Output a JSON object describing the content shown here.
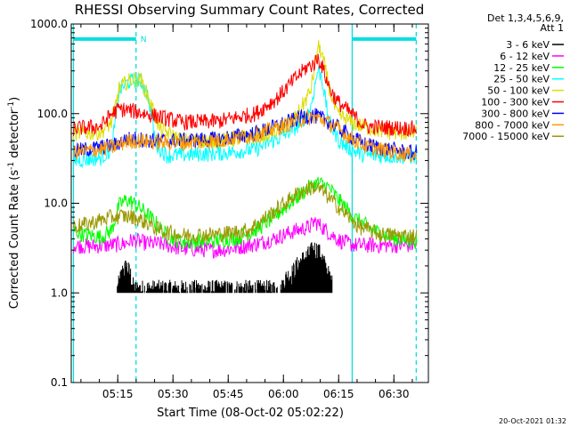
{
  "chart_data": {
    "type": "line",
    "title": "RHESSI Observing Summary Count Rates, Corrected",
    "xlabel": "Start Time (08-Oct-02 05:02:22)",
    "ylabel_parts": [
      "Corrected Count Rate (s",
      "-1",
      " detector",
      "-1",
      ")"
    ],
    "ylog": true,
    "ylim": [
      0.1,
      1000.0
    ],
    "xlim_min_from_start": [
      0,
      97
    ],
    "x_ticks": [
      {
        "label": "05:15",
        "min": 12.63
      },
      {
        "label": "05:30",
        "min": 27.63
      },
      {
        "label": "05:45",
        "min": 42.63
      },
      {
        "label": "06:00",
        "min": 57.63
      },
      {
        "label": "06:15",
        "min": 72.63
      },
      {
        "label": "06:30",
        "min": 87.63
      }
    ],
    "y_ticks": [
      {
        "label": "1000.0",
        "value": 1000
      },
      {
        "label": "100.0",
        "value": 100
      },
      {
        "label": "10.0",
        "value": 10
      },
      {
        "label": "1.0",
        "value": 1
      },
      {
        "label": "0.1",
        "value": 0.1
      }
    ],
    "legend_header": [
      "Det 1,3,4,5,6,9,",
      "Att 1"
    ],
    "legend_placement": "right",
    "vertical_lines": [
      {
        "min": 0.6,
        "style": "solid",
        "color": "#00e0e0"
      },
      {
        "min": 17.6,
        "style": "dashed",
        "color": "#00e0e0"
      },
      {
        "min": 76.3,
        "style": "solid",
        "color": "#00e0e0"
      },
      {
        "min": 93.7,
        "style": "dashed",
        "color": "#00e0e0"
      }
    ],
    "bars": [
      {
        "from": 0.6,
        "to": 17.6,
        "value": 680,
        "label": "N",
        "color": "#00e0e0"
      },
      {
        "from": 76.3,
        "to": 93.7,
        "value": 680,
        "label": "",
        "color": "#00e0e0"
      }
    ],
    "annotation": "20-Oct-2021 01:32",
    "series": [
      {
        "name": "3 - 6 keV",
        "color": "#000000",
        "style": "spiky",
        "points": [
          [
            12.5,
            1.0
          ],
          [
            14,
            1.6
          ],
          [
            15,
            1.8
          ],
          [
            16,
            1.5
          ],
          [
            17,
            1.0
          ],
          [
            27,
            1.0
          ],
          [
            55,
            1.0
          ],
          [
            57,
            0.95
          ],
          [
            58,
            1.3
          ],
          [
            60,
            1.5
          ],
          [
            62,
            2.0
          ],
          [
            64,
            2.3
          ],
          [
            65,
            2.6
          ],
          [
            66,
            2.8
          ],
          [
            67,
            2.7
          ],
          [
            68,
            2.3
          ],
          [
            69,
            1.8
          ],
          [
            70,
            1.4
          ],
          [
            71,
            1.1
          ]
        ]
      },
      {
        "name": "6 - 12 keV",
        "color": "#ff00ff",
        "style": "noisy",
        "points": [
          [
            0.6,
            3.4
          ],
          [
            5,
            3.3
          ],
          [
            10,
            3.4
          ],
          [
            14,
            3.5
          ],
          [
            17,
            3.9
          ],
          [
            20,
            3.6
          ],
          [
            25,
            3.5
          ],
          [
            30,
            3.1
          ],
          [
            40,
            3.0
          ],
          [
            45,
            3.2
          ],
          [
            50,
            3.5
          ],
          [
            55,
            4.0
          ],
          [
            60,
            4.8
          ],
          [
            65,
            5.5
          ],
          [
            66,
            6.3
          ],
          [
            68,
            5.5
          ],
          [
            70,
            4.7
          ],
          [
            73,
            3.8
          ],
          [
            77,
            3.4
          ],
          [
            80,
            3.4
          ],
          [
            94,
            3.4
          ]
        ]
      },
      {
        "name": "12 - 25 keV",
        "color": "#00ff00",
        "style": "noisy",
        "points": [
          [
            0.6,
            5.0
          ],
          [
            3,
            4.5
          ],
          [
            8,
            4.2
          ],
          [
            11,
            5.0
          ],
          [
            13,
            9.5
          ],
          [
            15,
            11.0
          ],
          [
            17,
            10.0
          ],
          [
            20,
            8.0
          ],
          [
            23,
            6.0
          ],
          [
            26,
            4.3
          ],
          [
            30,
            3.7
          ],
          [
            38,
            3.8
          ],
          [
            45,
            4.1
          ],
          [
            50,
            5.0
          ],
          [
            55,
            7.0
          ],
          [
            60,
            10.5
          ],
          [
            64,
            14.5
          ],
          [
            67,
            17.0
          ],
          [
            70,
            15.0
          ],
          [
            73,
            10.5
          ],
          [
            77,
            6.8
          ],
          [
            82,
            5.0
          ],
          [
            88,
            4.0
          ],
          [
            94,
            3.8
          ]
        ]
      },
      {
        "name": "25 - 50 keV",
        "color": "#00ffff",
        "style": "noisy",
        "points": [
          [
            0.6,
            30
          ],
          [
            8,
            32
          ],
          [
            11,
            40
          ],
          [
            13,
            180
          ],
          [
            15,
            220
          ],
          [
            17,
            235
          ],
          [
            19,
            228
          ],
          [
            21,
            150
          ],
          [
            23,
            45
          ],
          [
            26,
            34
          ],
          [
            40,
            36
          ],
          [
            50,
            40
          ],
          [
            57,
            55
          ],
          [
            62,
            75
          ],
          [
            65,
            115
          ],
          [
            67,
            310
          ],
          [
            68,
            260
          ],
          [
            70,
            80
          ],
          [
            73,
            48
          ],
          [
            76,
            40
          ],
          [
            79,
            35
          ],
          [
            82,
            34
          ],
          [
            94,
            33
          ]
        ]
      },
      {
        "name": "50 - 100 keV",
        "color": "#dddd00",
        "style": "noisy",
        "points": [
          [
            0.6,
            60
          ],
          [
            8,
            62
          ],
          [
            11,
            80
          ],
          [
            13,
            190
          ],
          [
            15,
            225
          ],
          [
            17,
            245
          ],
          [
            19,
            235
          ],
          [
            21,
            150
          ],
          [
            24,
            68
          ],
          [
            30,
            50
          ],
          [
            40,
            50
          ],
          [
            50,
            55
          ],
          [
            56,
            65
          ],
          [
            61,
            90
          ],
          [
            65,
            180
          ],
          [
            67,
            560
          ],
          [
            68,
            480
          ],
          [
            70,
            200
          ],
          [
            72,
            100
          ],
          [
            76,
            80
          ],
          [
            80,
            70
          ],
          [
            86,
            62
          ],
          [
            94,
            60
          ]
        ]
      },
      {
        "name": "100 - 300 keV",
        "color": "#ff0000",
        "style": "noisy",
        "points": [
          [
            0.6,
            68
          ],
          [
            8,
            72
          ],
          [
            11,
            100
          ],
          [
            13,
            112
          ],
          [
            15,
            110
          ],
          [
            17,
            106
          ],
          [
            20,
            100
          ],
          [
            24,
            92
          ],
          [
            30,
            80
          ],
          [
            40,
            82
          ],
          [
            50,
            100
          ],
          [
            56,
            150
          ],
          [
            61,
            250
          ],
          [
            64,
            330
          ],
          [
            66,
            360
          ],
          [
            67,
            420
          ],
          [
            68,
            350
          ],
          [
            70,
            200
          ],
          [
            72,
            140
          ],
          [
            76,
            100
          ],
          [
            80,
            72
          ],
          [
            86,
            70
          ],
          [
            94,
            68
          ]
        ]
      },
      {
        "name": "300 - 800 keV",
        "color": "#0000ff",
        "style": "noisy",
        "points": [
          [
            0.6,
            38
          ],
          [
            8,
            42
          ],
          [
            12,
            45
          ],
          [
            15,
            52
          ],
          [
            18,
            52
          ],
          [
            22,
            50
          ],
          [
            30,
            50
          ],
          [
            40,
            52
          ],
          [
            50,
            60
          ],
          [
            58,
            78
          ],
          [
            63,
            92
          ],
          [
            66,
            95
          ],
          [
            69,
            85
          ],
          [
            72,
            72
          ],
          [
            76,
            55
          ],
          [
            80,
            45
          ],
          [
            86,
            40
          ],
          [
            94,
            36
          ]
        ]
      },
      {
        "name": "800 - 7000 keV",
        "color": "#ff9900",
        "style": "noisy",
        "points": [
          [
            0.6,
            37
          ],
          [
            8,
            40
          ],
          [
            12,
            43
          ],
          [
            15,
            49
          ],
          [
            18,
            50
          ],
          [
            22,
            48
          ],
          [
            30,
            47
          ],
          [
            40,
            50
          ],
          [
            50,
            58
          ],
          [
            58,
            74
          ],
          [
            63,
            88
          ],
          [
            66,
            92
          ],
          [
            69,
            83
          ],
          [
            72,
            70
          ],
          [
            76,
            53
          ],
          [
            80,
            43
          ],
          [
            86,
            38
          ],
          [
            94,
            34
          ]
        ]
      },
      {
        "name": "7000 - 15000 keV",
        "color": "#999900",
        "style": "noisy",
        "points": [
          [
            0.6,
            5.5
          ],
          [
            4,
            5.8
          ],
          [
            8,
            6.5
          ],
          [
            11,
            7.0
          ],
          [
            14,
            7.2
          ],
          [
            17,
            7.0
          ],
          [
            20,
            6.2
          ],
          [
            24,
            5.0
          ],
          [
            30,
            4.4
          ],
          [
            40,
            4.5
          ],
          [
            48,
            5.0
          ],
          [
            54,
            7.5
          ],
          [
            58,
            10.0
          ],
          [
            61,
            12.5
          ],
          [
            64,
            14.5
          ],
          [
            66,
            15.2
          ],
          [
            68,
            14.0
          ],
          [
            70,
            11.5
          ],
          [
            74,
            8.0
          ],
          [
            78,
            5.5
          ],
          [
            84,
            4.5
          ],
          [
            94,
            4.3
          ]
        ]
      }
    ]
  }
}
